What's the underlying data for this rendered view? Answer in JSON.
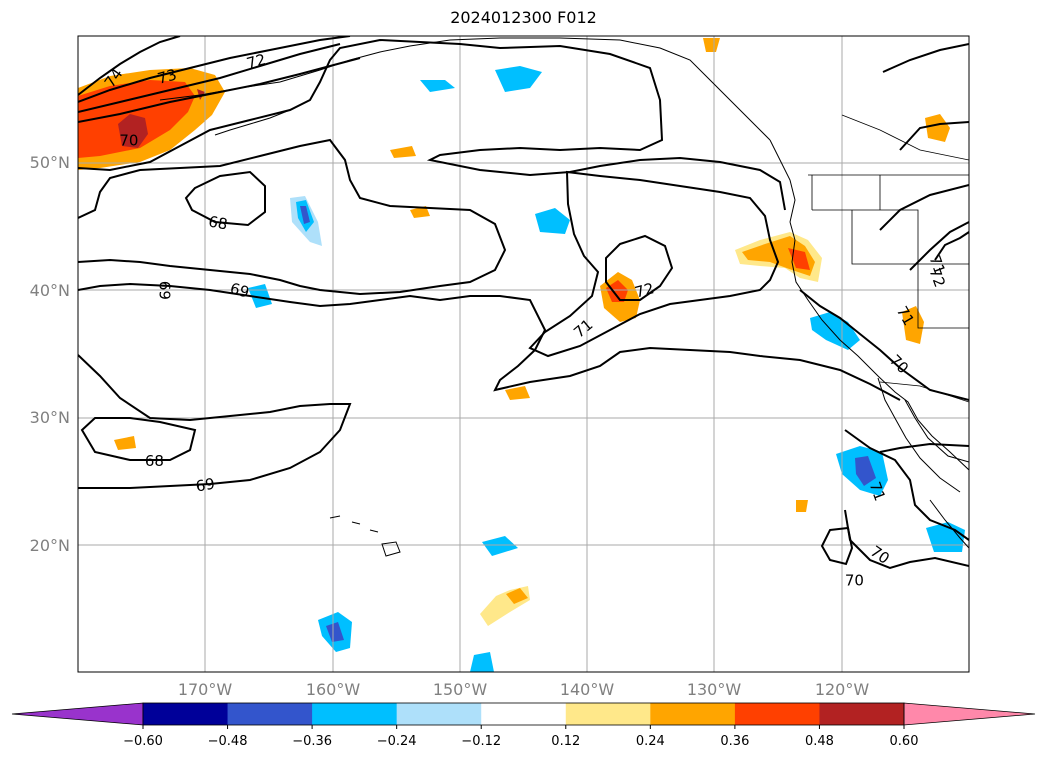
{
  "title": "2024012300 F012",
  "map": {
    "lat_labels": [
      "50°N",
      "40°N",
      "30°N",
      "20°N"
    ],
    "lat_values": [
      50,
      40,
      30,
      20
    ],
    "lon_labels": [
      "170°W",
      "160°W",
      "150°W",
      "140°W",
      "130°W",
      "120°W"
    ],
    "lon_values": [
      -170,
      -160,
      -150,
      -140,
      -130,
      -120
    ],
    "extent": {
      "lon_min": -180,
      "lon_max": -110,
      "lat_min": 10,
      "lat_max": 60
    },
    "contour_labels": [
      {
        "text": "74",
        "lon": -177.2,
        "lat": 56.7,
        "rot": -55
      },
      {
        "text": "73",
        "lon": -173.0,
        "lat": 56.8,
        "rot": -15
      },
      {
        "text": "72",
        "lon": -166.0,
        "lat": 58.0,
        "rot": -15
      },
      {
        "text": "70",
        "lon": -176.0,
        "lat": 51.8,
        "rot": 0
      },
      {
        "text": "68",
        "lon": -169.0,
        "lat": 45.3,
        "rot": 10
      },
      {
        "text": "69",
        "lon": -173.2,
        "lat": 40.0,
        "rot": 90
      },
      {
        "text": "69",
        "lon": -167.3,
        "lat": 40.0,
        "rot": 15
      },
      {
        "text": "68",
        "lon": -174.0,
        "lat": 26.6,
        "rot": 0
      },
      {
        "text": "69",
        "lon": -170.0,
        "lat": 24.7,
        "rot": -10
      },
      {
        "text": "71",
        "lon": -140.3,
        "lat": 37.0,
        "rot": -40
      },
      {
        "text": "72",
        "lon": -135.5,
        "lat": 40.0,
        "rot": -15
      },
      {
        "text": "70",
        "lon": -115.5,
        "lat": 34.2,
        "rot": 45
      },
      {
        "text": "71",
        "lon": -112.5,
        "lat": 42.0,
        "rot": 70
      },
      {
        "text": "72",
        "lon": -112.5,
        "lat": 41.0,
        "rot": 70
      },
      {
        "text": "71",
        "lon": -115.0,
        "lat": 38.0,
        "rot": 60
      },
      {
        "text": "71",
        "lon": -117.2,
        "lat": 24.2,
        "rot": 70
      },
      {
        "text": "70",
        "lon": -117.0,
        "lat": 19.2,
        "rot": 35
      },
      {
        "text": "70",
        "lon": -119.0,
        "lat": 17.2,
        "rot": 0
      }
    ]
  },
  "colorbar": {
    "ticks": [
      "−0.60",
      "−0.48",
      "−0.36",
      "−0.24",
      "−0.12",
      "0.12",
      "0.24",
      "0.36",
      "0.48",
      "0.60"
    ],
    "colors": [
      "#9933cc",
      "#000099",
      "#3355cc",
      "#00bfff",
      "#aee0fa",
      "#ffffff",
      "#ffe88a",
      "#ffa500",
      "#ff4000",
      "#b22222",
      "#ff88aa"
    ]
  }
}
